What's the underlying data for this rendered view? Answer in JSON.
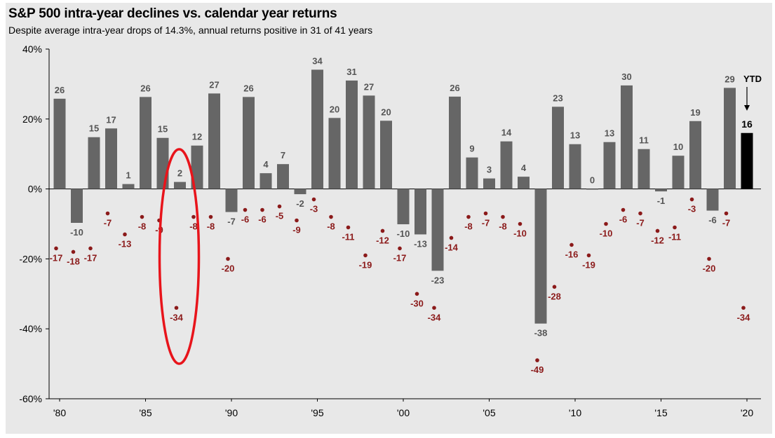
{
  "chart_data": {
    "type": "bar",
    "title": "S&P 500 intra-year declines vs. calendar year returns",
    "subtitle": "Despite average intra-year drops of 14.3%, annual returns positive in 31 of 41 years",
    "ylim": [
      -60,
      40
    ],
    "yticks": [
      -60,
      -40,
      -20,
      0,
      20,
      40
    ],
    "ytick_labels": [
      "-60%",
      "-40%",
      "-20%",
      "0%",
      "20%",
      "40%"
    ],
    "years": [
      1980,
      1981,
      1982,
      1983,
      1984,
      1985,
      1986,
      1987,
      1988,
      1989,
      1990,
      1991,
      1992,
      1993,
      1994,
      1995,
      1996,
      1997,
      1998,
      1999,
      2000,
      2001,
      2002,
      2003,
      2004,
      2005,
      2006,
      2007,
      2008,
      2009,
      2010,
      2011,
      2012,
      2013,
      2014,
      2015,
      2016,
      2017,
      2018,
      2019,
      2020
    ],
    "xtick_labels": [
      {
        "year": 1980,
        "label": "'80"
      },
      {
        "year": 1985,
        "label": "'85"
      },
      {
        "year": 1990,
        "label": "'90"
      },
      {
        "year": 1995,
        "label": "'95"
      },
      {
        "year": 2000,
        "label": "'00"
      },
      {
        "year": 2005,
        "label": "'05"
      },
      {
        "year": 2010,
        "label": "'10"
      },
      {
        "year": 2015,
        "label": "'15"
      },
      {
        "year": 2020,
        "label": "'20"
      }
    ],
    "series": [
      {
        "name": "Calendar year return",
        "color": "#666666",
        "values": [
          25.8,
          -9.7,
          14.8,
          17.3,
          1.4,
          26.3,
          14.6,
          2.0,
          12.4,
          27.3,
          -6.6,
          26.3,
          4.5,
          7.1,
          -1.5,
          34.1,
          20.3,
          31.0,
          26.7,
          19.5,
          -10.1,
          -13.0,
          -23.4,
          26.4,
          9.0,
          3.0,
          13.6,
          3.5,
          -38.5,
          23.5,
          12.8,
          0.0,
          13.4,
          29.6,
          11.4,
          -0.7,
          9.5,
          19.4,
          -6.2,
          28.9,
          16.0
        ],
        "labels": [
          "26",
          "-10",
          "15",
          "17",
          "1",
          "26",
          "15",
          "2",
          "12",
          "27",
          "-7",
          "26",
          "4",
          "7",
          "-2",
          "34",
          "20",
          "31",
          "27",
          "20",
          "-10",
          "-13",
          "-23",
          "26",
          "9",
          "3",
          "14",
          "4",
          "-38",
          "23",
          "13",
          "0",
          "13",
          "30",
          "11",
          "-1",
          "10",
          "19",
          "-6",
          "29",
          "16"
        ]
      },
      {
        "name": "Intra-year decline",
        "color": "#8b1a1a",
        "values": [
          -17,
          -18,
          -17,
          -7,
          -13,
          -8,
          -9,
          -34,
          -8,
          -8,
          -20,
          -6,
          -6,
          -5,
          -9,
          -3,
          -8,
          -11,
          -19,
          -12,
          -17,
          -30,
          -34,
          -14,
          -8,
          -7,
          -8,
          -10,
          -49,
          -28,
          -16,
          -19,
          -10,
          -6,
          -7,
          -12,
          -11,
          -3,
          -20,
          -7,
          -34
        ],
        "labels": [
          "-17",
          "-18",
          "-17",
          "-7",
          "-13",
          "-8",
          "-9",
          "-34",
          "-8",
          "-8",
          "-20",
          "-6",
          "-6",
          "-5",
          "-9",
          "-3",
          "-8",
          "-11",
          "-19",
          "-12",
          "-17",
          "-30",
          "-34",
          "-14",
          "-8",
          "-7",
          "-8",
          "-10",
          "-49",
          "-28",
          "-16",
          "-19",
          "-10",
          "-6",
          "-7",
          "-12",
          "-11",
          "-3",
          "-20",
          "-7",
          "-34"
        ]
      }
    ],
    "ytd": {
      "label": "YTD",
      "year": 2020,
      "color": "#000000"
    },
    "highlight": {
      "year": 1987,
      "color": "#e8141b"
    }
  }
}
